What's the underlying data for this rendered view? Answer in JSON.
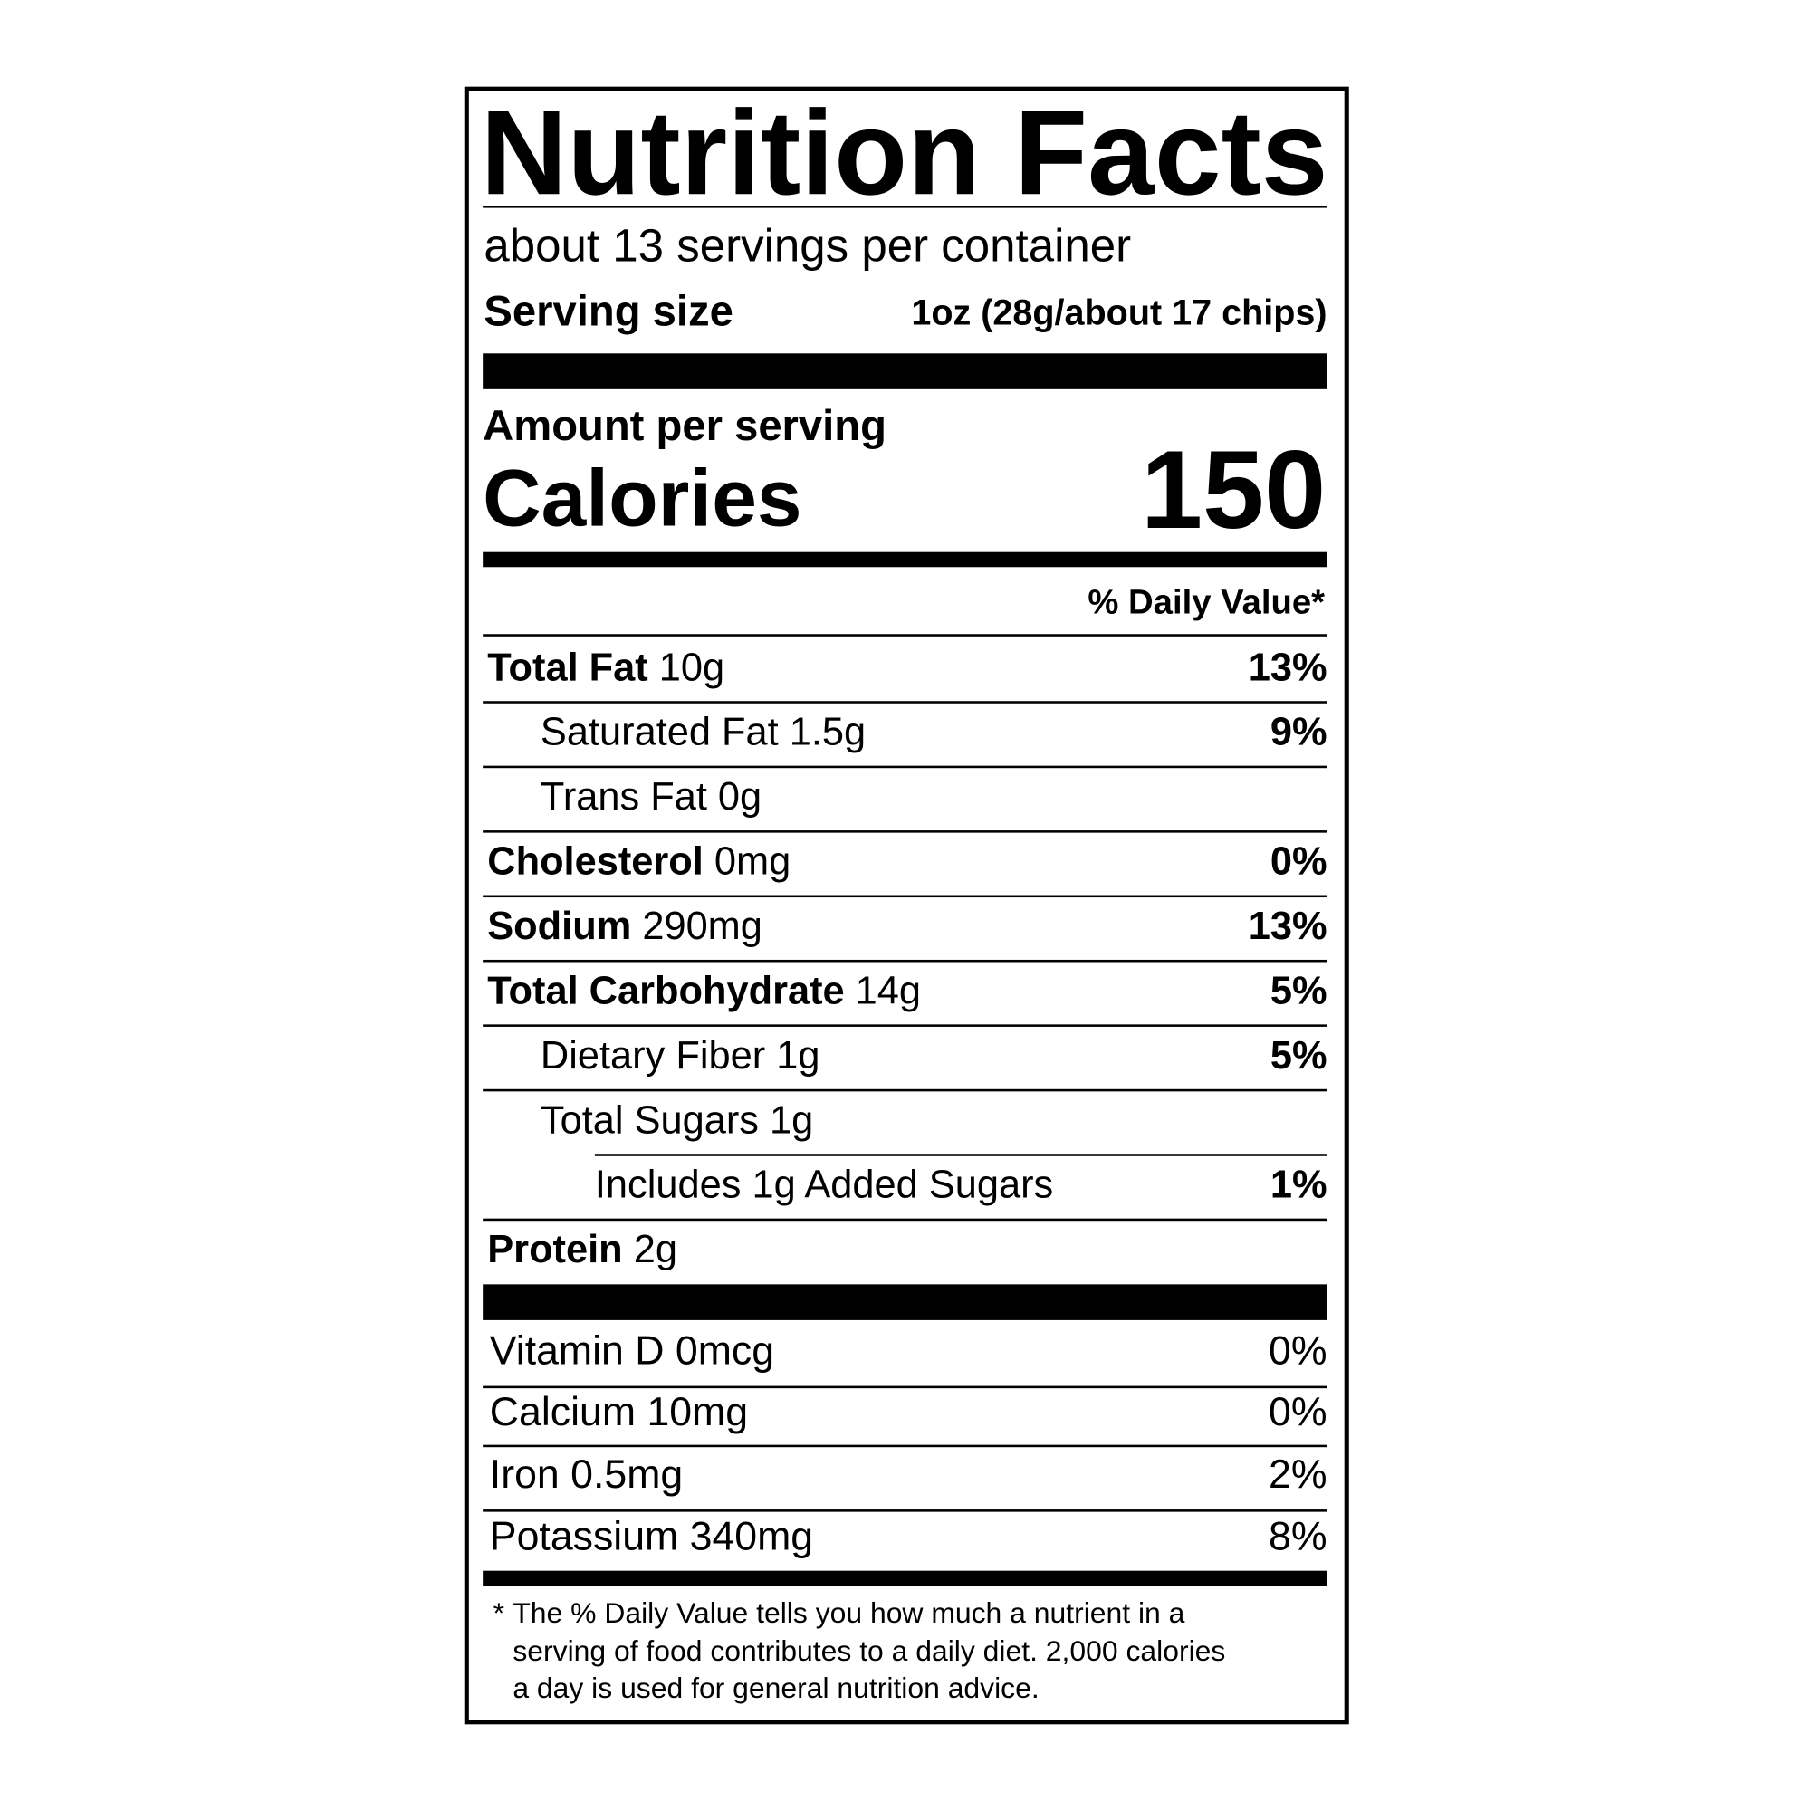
{
  "label": {
    "title": "Nutrition Facts",
    "servings_per_container": "about 13 servings per container",
    "serving_size_label": "Serving size",
    "serving_size_value": "1oz (28g/about 17 chips)",
    "amount_per_serving": "Amount per serving",
    "calories_label": "Calories",
    "calories_value": "150",
    "daily_value_header": "% Daily Value*",
    "nutrients": [
      {
        "name": "Total Fat",
        "amount": "10g",
        "dv": "13%",
        "level": 0
      },
      {
        "name": "Saturated Fat",
        "amount": "1.5g",
        "dv": "9%",
        "level": 1
      },
      {
        "name": "Trans Fat",
        "amount": "0g",
        "dv": "",
        "level": 1
      },
      {
        "name": "Cholesterol",
        "amount": "0mg",
        "dv": "0%",
        "level": 0
      },
      {
        "name": "Sodium",
        "amount": "290mg",
        "dv": "13%",
        "level": 0
      },
      {
        "name": "Total Carbohydrate",
        "amount": "14g",
        "dv": "5%",
        "level": 0
      },
      {
        "name": "Dietary Fiber",
        "amount": "1g",
        "dv": "5%",
        "level": 1
      },
      {
        "name": "Total Sugars",
        "amount": "1g",
        "dv": "",
        "level": 1
      },
      {
        "name": "Includes 1g Added Sugars",
        "amount": "",
        "dv": "1%",
        "level": 2
      },
      {
        "name": "Protein",
        "amount": "2g",
        "dv": "",
        "level": 0
      }
    ],
    "vitamins": [
      {
        "name": "Vitamin D 0mcg",
        "dv": "0%"
      },
      {
        "name": "Calcium 10mg",
        "dv": "0%"
      },
      {
        "name": "Iron 0.5mg",
        "dv": "2%"
      },
      {
        "name": "Potassium 340mg",
        "dv": "8%"
      }
    ],
    "footnote_star": "*",
    "footnote_lines": [
      "The % Daily Value tells you how much a nutrient in a",
      "serving of food contributes to a daily diet. 2,000 calories",
      "a day is used for general nutrition advice."
    ]
  }
}
